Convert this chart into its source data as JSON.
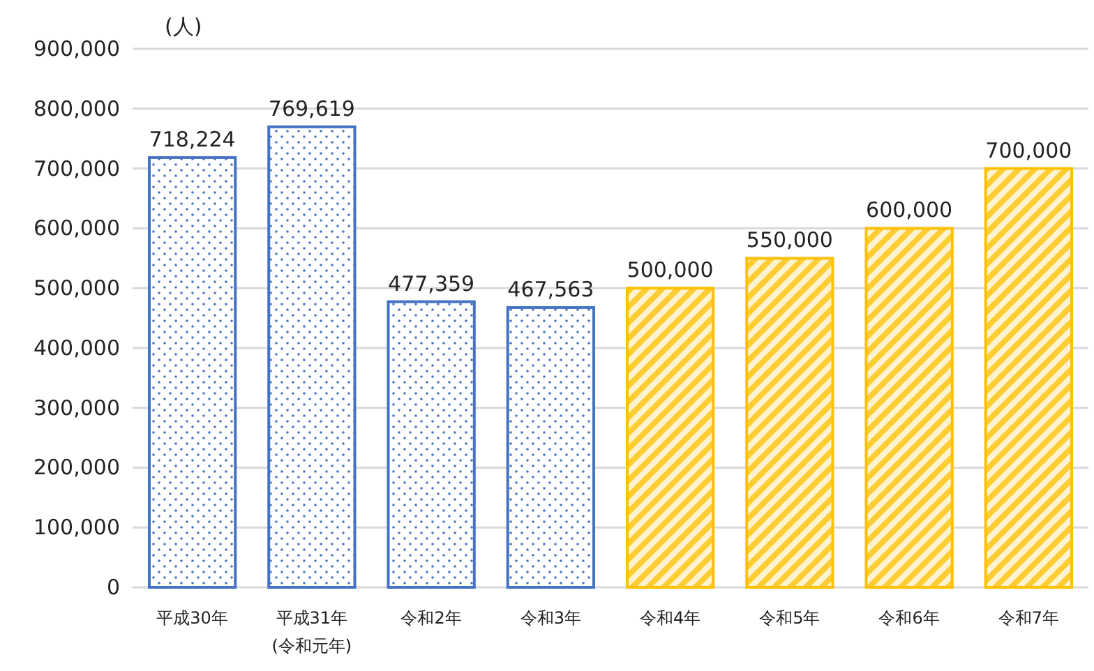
{
  "chart_data": {
    "type": "bar",
    "ylabel": "(人)",
    "categories": [
      "平成30年",
      "平成31年\n(令和元年)",
      "令和2年",
      "令和3年",
      "令和4年",
      "令和5年",
      "令和6年",
      "令和7年"
    ],
    "values": [
      718224,
      769619,
      477359,
      467563,
      500000,
      550000,
      600000,
      700000
    ],
    "colors": [
      "#4472c4",
      "#4472c4",
      "#4472c4",
      "#4472c4",
      "#ffc000",
      "#ffc000",
      "#ffc000",
      "#ffc000"
    ],
    "value_labels": [
      "718,224",
      "769,619",
      "477,359",
      "467,563",
      "500,000",
      "550,000",
      "600,000",
      "700,000"
    ],
    "ylim": [
      0,
      900000
    ],
    "yticks": [
      {
        "value": 0,
        "label": "0"
      },
      {
        "value": 100000,
        "label": "100,000"
      },
      {
        "value": 200000,
        "label": "200,000"
      },
      {
        "value": 300000,
        "label": "300,000"
      },
      {
        "value": 400000,
        "label": "400,000"
      },
      {
        "value": 500000,
        "label": "500,000"
      },
      {
        "value": 600000,
        "label": "600,000"
      },
      {
        "value": 700000,
        "label": "700,000"
      },
      {
        "value": 800000,
        "label": "800,000"
      },
      {
        "value": 900000,
        "label": "900,000"
      }
    ],
    "grid": "y"
  }
}
